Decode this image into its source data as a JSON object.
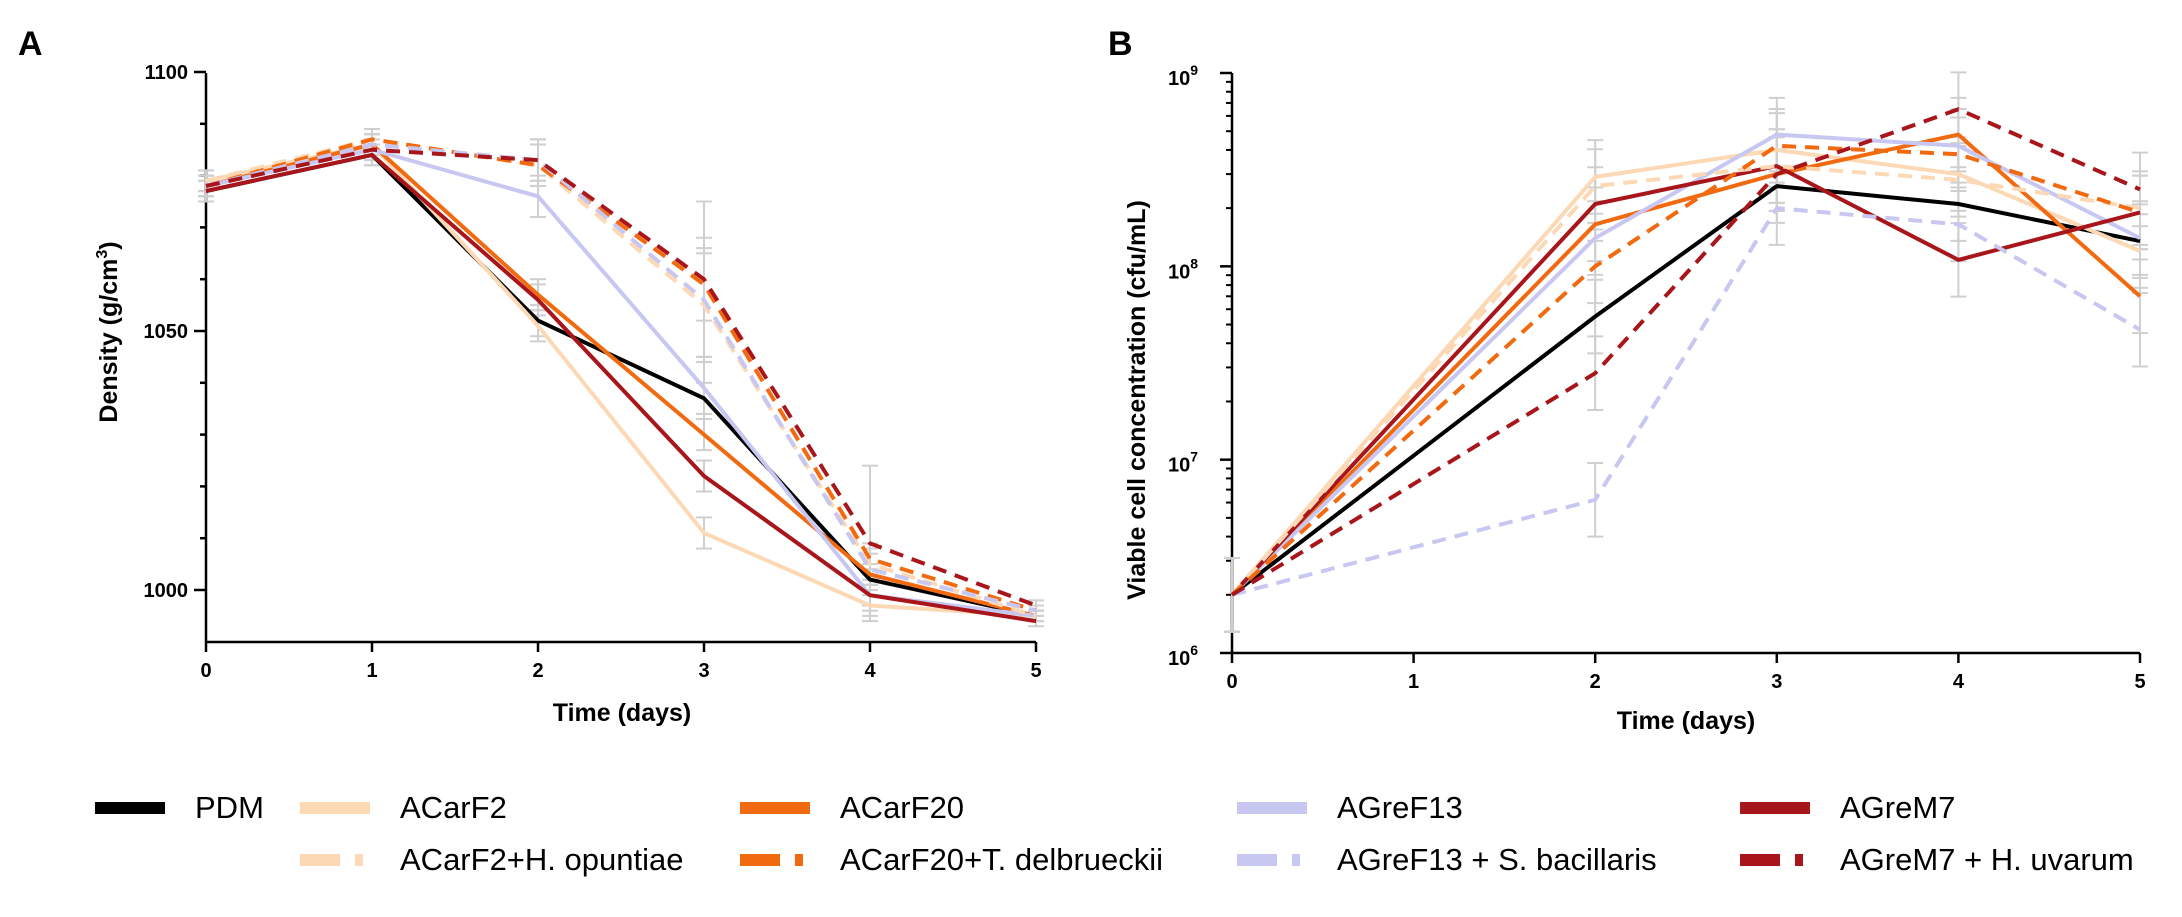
{
  "chart_data": [
    {
      "panel": "A",
      "type": "line",
      "title": "",
      "xlabel": "Time (days)",
      "ylabel": "Density (g/cm",
      "ylabel_sup": "3",
      "ylabel_end": ")",
      "x": [
        0,
        1,
        2,
        3,
        4,
        5
      ],
      "xlim": [
        0,
        5
      ],
      "ylim": [
        990,
        1100
      ],
      "x_ticks": [
        "0",
        "1",
        "2",
        "3",
        "4",
        "5"
      ],
      "y_ticks": [
        {
          "value": 1000,
          "label": "1000"
        },
        {
          "value": 1050,
          "label": "1050"
        },
        {
          "value": 1100,
          "label": "1100"
        }
      ],
      "series": [
        {
          "name": "PDM",
          "values": [
            1077,
            1084,
            1052,
            1037,
            1002,
            995
          ],
          "errors": [
            2,
            2,
            3,
            3,
            2,
            1
          ]
        },
        {
          "name": "ACarF2",
          "values": [
            1079,
            1086,
            1051,
            1011,
            997,
            995
          ],
          "errors": [
            2,
            2,
            3,
            3,
            2,
            1
          ]
        },
        {
          "name": "ACarF20",
          "values": [
            1078,
            1086,
            1057,
            1030,
            1003,
            995
          ],
          "errors": [
            2,
            2,
            3,
            3,
            2,
            1
          ]
        },
        {
          "name": "AGreF13",
          "values": [
            1078,
            1085,
            1076,
            1039,
            999,
            995
          ],
          "errors": [
            2,
            3,
            4,
            6,
            3,
            1
          ]
        },
        {
          "name": "AGreM7",
          "values": [
            1077,
            1084,
            1056,
            1022,
            999,
            994
          ],
          "errors": [
            2,
            2,
            3,
            3,
            2,
            1
          ]
        },
        {
          "name": "ACarF2+H. opuntiae",
          "values": [
            1079,
            1087,
            1082,
            1055,
            1005,
            995
          ],
          "errors": [
            2,
            2,
            4,
            10,
            3,
            1
          ]
        },
        {
          "name": "ACarF20+T. delbrueckii",
          "values": [
            1078,
            1087,
            1082,
            1059,
            1006,
            996
          ],
          "errors": [
            2,
            2,
            4,
            7,
            3,
            1
          ]
        },
        {
          "name": "AGreF13 + S. bacillaris",
          "values": [
            1078,
            1086,
            1083,
            1056,
            1004,
            996
          ],
          "errors": [
            2,
            2,
            4,
            12,
            3,
            1
          ]
        },
        {
          "name": "AGreM7 + H. uvarum",
          "values": [
            1078,
            1085,
            1083,
            1060,
            1009,
            997
          ],
          "errors": [
            2,
            2,
            4,
            15,
            15,
            1
          ]
        }
      ]
    },
    {
      "panel": "B",
      "type": "line",
      "scale": "log",
      "title": "",
      "xlabel": "Time (days)",
      "ylabel": "Viable cell concentration (cfu/mL)",
      "x": [
        0,
        1,
        2,
        3,
        4,
        5
      ],
      "xlim": [
        0,
        5
      ],
      "ylim": [
        1000000,
        1000000000
      ],
      "x_ticks": [
        "0",
        "1",
        "2",
        "3",
        "4",
        "5"
      ],
      "y_ticks": [
        {
          "value": 1000000,
          "base": "10",
          "exp": "6"
        },
        {
          "value": 10000000,
          "base": "10",
          "exp": "7"
        },
        {
          "value": 100000000,
          "base": "10",
          "exp": "8"
        },
        {
          "value": 1000000000,
          "base": "10",
          "exp": "9"
        }
      ],
      "series": [
        {
          "name": "PDM",
          "values": [
            2000000,
            null,
            55000000,
            260000000,
            210000000,
            135000000
          ]
        },
        {
          "name": "ACarF2",
          "values": [
            2000000,
            null,
            290000000,
            400000000,
            300000000,
            120000000
          ]
        },
        {
          "name": "ACarF20",
          "values": [
            2000000,
            null,
            165000000,
            300000000,
            480000000,
            70000000
          ]
        },
        {
          "name": "AGreF13",
          "values": [
            2000000,
            null,
            140000000,
            480000000,
            420000000,
            140000000
          ]
        },
        {
          "name": "AGreM7",
          "values": [
            2000000,
            null,
            210000000,
            330000000,
            108000000,
            190000000
          ]
        },
        {
          "name": "ACarF2+H. opuntiae",
          "values": [
            2000000,
            null,
            260000000,
            330000000,
            280000000,
            200000000
          ]
        },
        {
          "name": "ACarF20+T. delbrueckii",
          "values": [
            2000000,
            null,
            100000000,
            420000000,
            380000000,
            190000000
          ]
        },
        {
          "name": "AGreF13 + S. bacillaris",
          "values": [
            2000000,
            null,
            6200000,
            200000000,
            165000000,
            47000000
          ]
        },
        {
          "name": "AGreM7 + H. uvarum",
          "values": [
            2000000,
            null,
            28000000,
            300000000,
            650000000,
            250000000
          ]
        }
      ]
    }
  ],
  "panels": {
    "a": "A",
    "b": "B"
  },
  "legend": [
    {
      "key": "pdm",
      "label": "PDM",
      "color": "#000000",
      "dashed": false
    },
    {
      "key": "acarf2",
      "label": "ACarF2",
      "color": "#fcd9b4",
      "dashed": false
    },
    {
      "key": "acarf20",
      "label": "ACarF20",
      "color": "#f26a10",
      "dashed": false
    },
    {
      "key": "agref13",
      "label": "AGreF13",
      "color": "#c7c7f2",
      "dashed": false
    },
    {
      "key": "agrem7",
      "label": "AGreM7",
      "color": "#a8161b",
      "dashed": false
    },
    {
      "key": "acarf2-ho",
      "label": "ACarF2+H. opuntiae",
      "color": "#fcd9b4",
      "dashed": true
    },
    {
      "key": "acarf20-td",
      "label": "ACarF20+T. delbrueckii",
      "color": "#f26a10",
      "dashed": true
    },
    {
      "key": "agref13-sb",
      "label": "AGreF13 + S. bacillaris",
      "color": "#c7c7f2",
      "dashed": true
    },
    {
      "key": "agrem7-hu",
      "label": "AGreM7 + H. uvarum",
      "color": "#a8161b",
      "dashed": true
    }
  ]
}
